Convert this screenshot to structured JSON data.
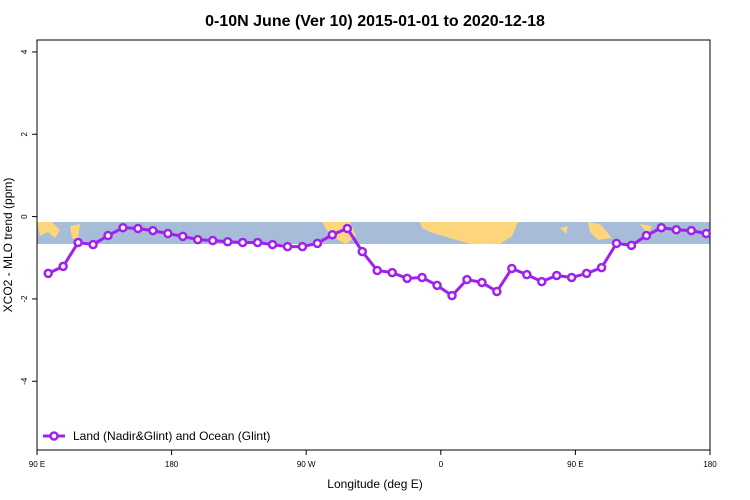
{
  "chart_data": {
    "type": "line",
    "title": "0-10N June (Ver 10)   2015-01-01 to 2020-12-18",
    "x_label": "Longitude (deg E)",
    "y_label": "XCO2 - MLO trend (ppm)",
    "xlim": [
      90,
      540
    ],
    "xticks": [
      {
        "value": 90,
        "label": "90 E"
      },
      180,
      {
        "value": 270,
        "label": "90 W"
      },
      {
        "value": 360,
        "label": "0"
      },
      {
        "value": 450,
        "label": "90 E"
      },
      {
        "value": 540,
        "label": "180"
      }
    ],
    "ylim": [
      -5.67,
      4.29
    ],
    "yticks": [
      4,
      2,
      0,
      -2,
      -4
    ],
    "legend": "bottom-left",
    "x": [
      97.5,
      107.5,
      117.5,
      127.5,
      137.5,
      147.5,
      157.5,
      167.5,
      177.5,
      187.5,
      197.5,
      207.5,
      217.5,
      227.5,
      237.5,
      247.5,
      257.5,
      267.5,
      277.5,
      287.5,
      297.5,
      307.5,
      317.5,
      327.5,
      337.5,
      347.5,
      357.5,
      367.5,
      377.5,
      387.5,
      397.5,
      407.5,
      417.5,
      427.5,
      437.5,
      447.5,
      457.5,
      467.5,
      477.5,
      487.5,
      497.5,
      507.5,
      517.5,
      527.5,
      537.5
    ],
    "series": [
      {
        "name": "Land (Nadir&Glint) and Ocean (Glint)",
        "color": "#a020f0",
        "values": [
          -1.38,
          -1.21,
          -0.63,
          -0.68,
          -0.46,
          -0.27,
          -0.29,
          -0.34,
          -0.41,
          -0.48,
          -0.56,
          -0.58,
          -0.61,
          -0.63,
          -0.63,
          -0.68,
          -0.73,
          -0.73,
          -0.65,
          -0.44,
          -0.29,
          -0.85,
          -1.31,
          -1.36,
          -1.5,
          -1.48,
          -1.67,
          -1.92,
          -1.53,
          -1.6,
          -1.82,
          -1.26,
          -1.41,
          -1.58,
          -1.43,
          -1.48,
          -1.38,
          -1.24,
          -0.65,
          -0.7,
          -0.46,
          -0.27,
          -0.32,
          -0.34,
          -0.41
        ]
      }
    ]
  }
}
